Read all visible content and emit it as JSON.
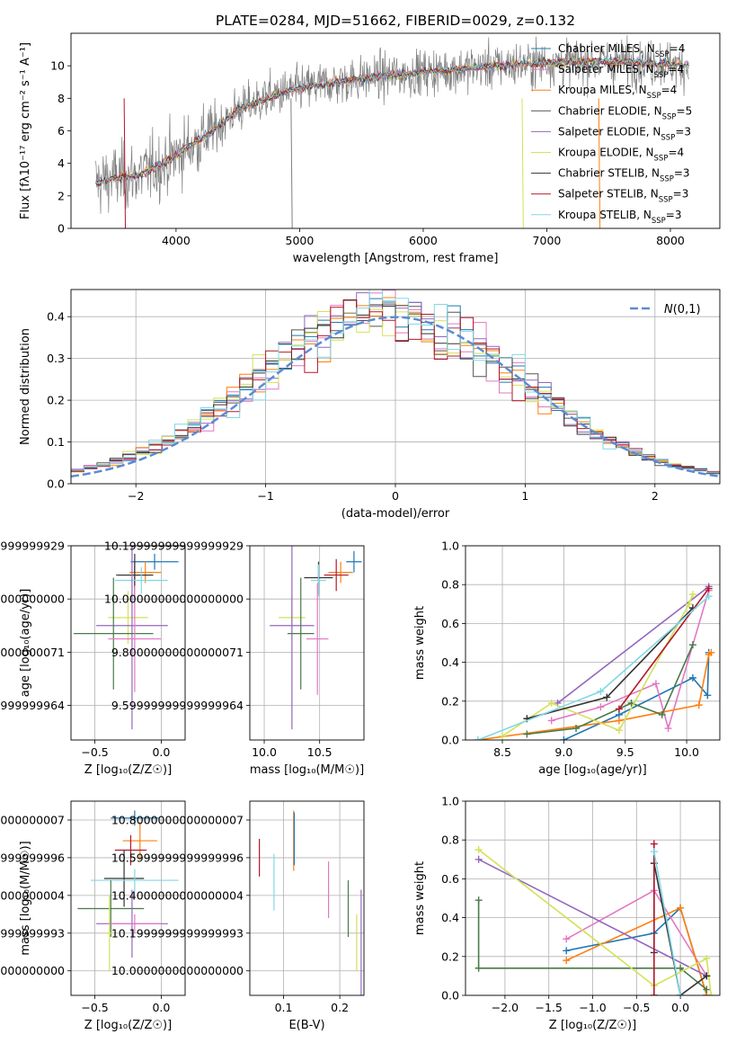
{
  "title": "PLATE=0284, MJD=51662, FIBERID=0029, z=0.132",
  "colors": {
    "chabrier_miles": "#1f77b4",
    "salpeter_miles": "#e377c2",
    "kroupa_miles": "#ff7f0e",
    "chabrier_elodie": "#555555",
    "salpeter_elodie": "#9467bd",
    "kroupa_elodie": "#d4e157",
    "chabrier_stelib": "#333333",
    "salpeter_stelib": "#b2182b",
    "kroupa_stelib": "#80d8e6",
    "normal": "#5b8bd6",
    "grid": "#b0b0b0"
  },
  "chart_data": [
    {
      "id": "spectrum",
      "type": "line",
      "title": "PLATE=0284, MJD=51662, FIBERID=0029, z=0.132",
      "xlabel": "wavelength [Angstrom, rest frame]",
      "ylabel": "Flux [fλ10⁻¹⁷ erg cm⁻² s⁻¹ A⁻¹]",
      "xlim": [
        3150,
        8400
      ],
      "ylim": [
        0,
        12
      ],
      "xticks": [
        4000,
        5000,
        6000,
        7000,
        8000
      ],
      "yticks": [
        0,
        2,
        4,
        6,
        8,
        10
      ],
      "grid": false,
      "legend_position": "top-right",
      "continuum": {
        "x": [
          3350,
          3500,
          3700,
          3900,
          4100,
          4300,
          4500,
          4800,
          5000,
          5300,
          5600,
          6000,
          6300,
          6600,
          7000,
          7500,
          8000,
          8150
        ],
        "y": [
          2.8,
          3.1,
          3.3,
          4.0,
          5.0,
          6.0,
          7.3,
          8.2,
          8.6,
          9.0,
          9.3,
          9.6,
          9.8,
          10.0,
          10.2,
          10.3,
          10.1,
          10.0
        ]
      },
      "series": [
        {
          "name": "Chabrier MILES, N$_{SSP}$=4",
          "color": "#1f77b4"
        },
        {
          "name": "Salpeter MILES, N$_{SSP}$=4",
          "color": "#e377c2"
        },
        {
          "name": "Kroupa MILES, N$_{SSP}$=4",
          "color": "#ff7f0e"
        },
        {
          "name": "Chabrier ELODIE, N$_{SSP}$=5",
          "color": "#555555"
        },
        {
          "name": "Salpeter ELODIE, N$_{SSP}$=3",
          "color": "#9467bd"
        },
        {
          "name": "Kroupa ELODIE, N$_{SSP}$=4",
          "color": "#d4e157"
        },
        {
          "name": "Chabrier STELIB, N$_{SSP}$=3",
          "color": "#333333"
        },
        {
          "name": "Salpeter STELIB, N$_{SSP}$=3",
          "color": "#b2182b"
        },
        {
          "name": "Kroupa STELIB, N$_{SSP}$=3",
          "color": "#80d8e6"
        }
      ]
    },
    {
      "id": "residuals",
      "type": "line",
      "xlabel": "(data-model)/error",
      "ylabel": "Normed distribution",
      "xlim": [
        -2.5,
        2.5
      ],
      "ylim": [
        0,
        0.465
      ],
      "xticks": [
        -2,
        -1,
        0,
        1,
        2
      ],
      "yticks": [
        0.0,
        0.1,
        0.2,
        0.3,
        0.4
      ],
      "grid": true,
      "legend_position": "top-right",
      "legend": "$\\mathcal{N}(0,1)$",
      "bin_width": 0.1
    },
    {
      "id": "z-age",
      "type": "scatter",
      "xlabel": "Z [log₁₀(Z/Z☉)]",
      "ylabel": "age  [log₁₀(age/yr)]",
      "xlim": [
        -0.68,
        0.18
      ],
      "ylim": [
        9.47,
        10.2
      ],
      "xticks": [
        -0.5,
        0.0
      ],
      "yticks": [
        9.6,
        9.8,
        10.0,
        10.2
      ],
      "grid": true,
      "points": [
        {
          "x": -0.05,
          "xerr": 0.18,
          "y": 10.14,
          "yerr": 0.03,
          "c": "#1f77b4"
        },
        {
          "x": -0.12,
          "xerr": 0.12,
          "y": 10.1,
          "yerr": 0.04,
          "c": "#ff7f0e"
        },
        {
          "x": -0.2,
          "xerr": 0.12,
          "y": 10.09,
          "yerr": 0.05,
          "c": "#b2182b"
        },
        {
          "x": -0.2,
          "xerr": 0.14,
          "y": 10.09,
          "yerr": 0.08,
          "c": "#333333"
        },
        {
          "x": -0.15,
          "xerr": 0.2,
          "y": 10.07,
          "yerr": 0.05,
          "c": "#80d8e6"
        },
        {
          "x": -0.25,
          "xerr": 0.15,
          "y": 9.93,
          "yerr": 0.1,
          "c": "#d4e157"
        },
        {
          "x": -0.22,
          "xerr": 0.27,
          "y": 9.9,
          "yerr": 0.39,
          "c": "#9467bd"
        },
        {
          "x": -0.36,
          "xerr": 0.3,
          "y": 9.87,
          "yerr": 0.21,
          "c": "#4a7a4a"
        },
        {
          "x": -0.2,
          "xerr": 0.2,
          "y": 9.85,
          "yerr": 0.2,
          "c": "#e377c2"
        }
      ]
    },
    {
      "id": "mass-age",
      "type": "scatter",
      "xlabel": "mass [log₁₀(M/M☉)]",
      "ylabel": "",
      "xlim": [
        9.87,
        10.9
      ],
      "ylim": [
        9.47,
        10.2
      ],
      "xticks": [
        10.0,
        10.5
      ],
      "yticks": [
        9.6,
        9.8,
        10.0,
        10.2
      ],
      "grid": true,
      "points": [
        {
          "x": 10.81,
          "xerr": 0.07,
          "y": 10.14,
          "yerr": 0.04,
          "c": "#1f77b4"
        },
        {
          "x": 10.69,
          "xerr": 0.11,
          "y": 10.1,
          "yerr": 0.04,
          "c": "#ff7f0e"
        },
        {
          "x": 10.65,
          "xerr": 0.11,
          "y": 10.09,
          "yerr": 0.06,
          "c": "#b2182b"
        },
        {
          "x": 10.49,
          "xerr": 0.13,
          "y": 10.08,
          "yerr": 0.06,
          "c": "#333333"
        },
        {
          "x": 10.49,
          "xerr": 0.07,
          "y": 10.07,
          "yerr": 0.06,
          "c": "#80d8e6"
        },
        {
          "x": 10.25,
          "xerr": 0.12,
          "y": 9.93,
          "yerr": 0.08,
          "c": "#d4e157"
        },
        {
          "x": 10.25,
          "xerr": 0.2,
          "y": 9.9,
          "yerr": 0.39,
          "c": "#9467bd"
        },
        {
          "x": 10.33,
          "xerr": 0.12,
          "y": 9.87,
          "yerr": 0.21,
          "c": "#4a7a4a"
        },
        {
          "x": 10.48,
          "xerr": 0.1,
          "y": 9.85,
          "yerr": 0.21,
          "c": "#e377c2"
        }
      ]
    },
    {
      "id": "age-weight",
      "type": "line",
      "xlabel": "age  [log₁₀(age/yr)]",
      "ylabel": "mass weight",
      "xlim": [
        8.2,
        10.27
      ],
      "ylim": [
        0,
        1.0
      ],
      "xticks": [
        8.5,
        9.0,
        9.5,
        10.0
      ],
      "yticks": [
        0.0,
        0.2,
        0.4,
        0.6,
        0.8,
        1.0
      ],
      "grid": true,
      "series": [
        {
          "c": "#1f77b4",
          "x": [
            9.0,
            9.45,
            10.05,
            10.17,
            10.18
          ],
          "y": [
            0.0,
            0.13,
            0.32,
            0.23,
            0.45
          ]
        },
        {
          "c": "#e377c2",
          "x": [
            8.9,
            9.3,
            9.75,
            9.85,
            10.18
          ],
          "y": [
            0.1,
            0.17,
            0.29,
            0.06,
            0.77
          ]
        },
        {
          "c": "#ff7f0e",
          "x": [
            8.3,
            9.45,
            10.1,
            10.18,
            10.2
          ],
          "y": [
            0.0,
            0.1,
            0.18,
            0.44,
            0.45
          ]
        },
        {
          "c": "#4a7a4a",
          "x": [
            8.7,
            9.1,
            9.55,
            9.8,
            10.05
          ],
          "y": [
            0.03,
            0.06,
            0.19,
            0.13,
            0.49
          ]
        },
        {
          "c": "#9467bd",
          "x": [
            8.95,
            10.18
          ],
          "y": [
            0.19,
            0.79
          ]
        },
        {
          "c": "#d4e157",
          "x": [
            8.5,
            8.9,
            9.45,
            10.02,
            10.05
          ],
          "y": [
            0.02,
            0.19,
            0.05,
            0.7,
            0.75
          ]
        },
        {
          "c": "#333333",
          "x": [
            8.7,
            9.35,
            10.05
          ],
          "y": [
            0.11,
            0.22,
            0.68
          ]
        },
        {
          "c": "#b2182b",
          "x": [
            9.45,
            10.18
          ],
          "y": [
            0.16,
            0.78
          ]
        },
        {
          "c": "#80d8e6",
          "x": [
            8.3,
            9.3,
            10.18
          ],
          "y": [
            0.0,
            0.25,
            0.74
          ]
        }
      ]
    },
    {
      "id": "z-mass",
      "type": "scatter",
      "xlabel": "Z [log₁₀(Z/Z☉)]",
      "ylabel": "mass [log₁₀(M/M☉)]",
      "xlim": [
        -0.68,
        0.18
      ],
      "ylim": [
        9.87,
        10.9
      ],
      "xticks": [
        -0.5,
        0.0
      ],
      "yticks": [
        10.0,
        10.2,
        10.4,
        10.6,
        10.8
      ],
      "grid": true,
      "points": [
        {
          "x": -0.2,
          "xerr": 0.18,
          "y": 10.81,
          "yerr": 0.04,
          "c": "#1f77b4"
        },
        {
          "x": -0.16,
          "xerr": 0.13,
          "y": 10.69,
          "yerr": 0.1,
          "c": "#ff7f0e"
        },
        {
          "x": -0.23,
          "xerr": 0.12,
          "y": 10.64,
          "yerr": 0.08,
          "c": "#b2182b"
        },
        {
          "x": -0.28,
          "xerr": 0.15,
          "y": 10.49,
          "yerr": 0.15,
          "c": "#333333"
        },
        {
          "x": -0.2,
          "xerr": 0.33,
          "y": 10.48,
          "yerr": 0.06,
          "c": "#80d8e6"
        },
        {
          "x": -0.38,
          "xerr": 0.25,
          "y": 10.33,
          "yerr": 0.15,
          "c": "#4a7a4a"
        },
        {
          "x": -0.22,
          "xerr": 0.27,
          "y": 10.25,
          "yerr": 0.18,
          "c": "#9467bd"
        },
        {
          "x": -0.39,
          "xerr": 0.03,
          "y": 10.2,
          "yerr": 0.2,
          "c": "#d4e157"
        },
        {
          "x": -0.2,
          "xerr": 0.2,
          "y": 10.25,
          "yerr": 0.05,
          "c": "#e377c2"
        }
      ]
    },
    {
      "id": "ebv-mass",
      "type": "scatter",
      "xlabel": "E(B-V)",
      "ylabel": "",
      "xlim": [
        0.04,
        0.243
      ],
      "ylim": [
        9.87,
        10.9
      ],
      "xticks": [
        0.1,
        0.2
      ],
      "yticks": [
        10.0,
        10.2,
        10.4,
        10.6,
        10.8
      ],
      "grid": true,
      "points": [
        {
          "x": 0.057,
          "y": 10.6,
          "yerr": 0.1,
          "c": "#b2182b"
        },
        {
          "x": 0.083,
          "y": 10.47,
          "yerr": 0.15,
          "c": "#80d8e6"
        },
        {
          "x": 0.118,
          "y": 10.69,
          "yerr": 0.16,
          "c": "#ff7f0e"
        },
        {
          "x": 0.119,
          "y": 10.7,
          "yerr": 0.14,
          "c": "#1f77b4"
        },
        {
          "x": 0.18,
          "y": 10.43,
          "yerr": 0.15,
          "c": "#e377c2"
        },
        {
          "x": 0.215,
          "y": 10.33,
          "yerr": 0.15,
          "c": "#4a7a4a"
        },
        {
          "x": 0.23,
          "y": 10.15,
          "yerr": 0.15,
          "c": "#d4e157"
        },
        {
          "x": 0.238,
          "y": 10.15,
          "yerr": 0.28,
          "c": "#9467bd"
        }
      ]
    },
    {
      "id": "z-weight",
      "type": "line",
      "xlabel": "Z [log₁₀(Z/Z☉)]",
      "ylabel": "mass weight",
      "xlim": [
        -2.45,
        0.45
      ],
      "ylim": [
        0,
        1.0
      ],
      "xticks": [
        -2.0,
        -1.5,
        -1.0,
        -0.5,
        0.0
      ],
      "yticks": [
        0.0,
        0.2,
        0.4,
        0.6,
        0.8,
        1.0
      ],
      "grid": true,
      "series": [
        {
          "c": "#1f77b4",
          "x": [
            -1.3,
            -0.3,
            0.0,
            0.3
          ],
          "y": [
            0.23,
            0.32,
            0.45,
            0.0
          ]
        },
        {
          "c": "#e377c2",
          "x": [
            -1.3,
            -0.3,
            0.3
          ],
          "y": [
            0.29,
            0.54,
            0.1
          ]
        },
        {
          "c": "#ff7f0e",
          "x": [
            -1.3,
            0.0,
            0.3
          ],
          "y": [
            0.18,
            0.45,
            0.0
          ]
        },
        {
          "c": "#4a7a4a",
          "x": [
            -2.3,
            -2.3,
            0.0,
            0.3
          ],
          "y": [
            0.49,
            0.14,
            0.14,
            0.03
          ]
        },
        {
          "c": "#9467bd",
          "x": [
            -2.3,
            0.3
          ],
          "y": [
            0.7,
            0.1
          ]
        },
        {
          "c": "#d4e157",
          "x": [
            -2.3,
            -0.3,
            0.3,
            0.35
          ],
          "y": [
            0.75,
            0.05,
            0.19,
            0.0
          ]
        },
        {
          "c": "#333333",
          "x": [
            -0.3,
            -0.3,
            0.0,
            0.3
          ],
          "y": [
            0.22,
            0.68,
            0.0,
            0.1
          ]
        },
        {
          "c": "#b2182b",
          "x": [
            -0.3,
            -0.3
          ],
          "y": [
            0.0,
            0.78
          ]
        },
        {
          "c": "#80d8e6",
          "x": [
            -0.3,
            0.0
          ],
          "y": [
            0.74,
            0.0
          ]
        }
      ]
    }
  ]
}
